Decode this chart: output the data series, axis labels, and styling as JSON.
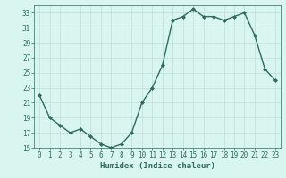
{
  "x": [
    0,
    1,
    2,
    3,
    4,
    5,
    6,
    7,
    8,
    9,
    10,
    11,
    12,
    13,
    14,
    15,
    16,
    17,
    18,
    19,
    20,
    21,
    22,
    23
  ],
  "y": [
    22,
    19,
    18,
    17,
    17.5,
    16.5,
    15.5,
    15,
    15.5,
    17,
    21,
    23,
    26,
    32,
    32.5,
    33.5,
    32.5,
    32.5,
    32,
    32.5,
    33,
    30,
    25.5,
    24
  ],
  "line_color": "#2e6b5e",
  "marker": "D",
  "marker_size": 2,
  "bg_color": "#d8f5f0",
  "grid_major_color": "#c0ddd8",
  "grid_minor_color": "#ddeee9",
  "xlabel": "Humidex (Indice chaleur)",
  "ylim": [
    15,
    34
  ],
  "yticks": [
    15,
    17,
    19,
    21,
    23,
    25,
    27,
    29,
    31,
    33
  ],
  "xticks": [
    0,
    1,
    2,
    3,
    4,
    5,
    6,
    7,
    8,
    9,
    10,
    11,
    12,
    13,
    14,
    15,
    16,
    17,
    18,
    19,
    20,
    21,
    22,
    23
  ],
  "tick_label_fontsize": 5.5,
  "xlabel_fontsize": 6.5,
  "line_width": 1.0
}
